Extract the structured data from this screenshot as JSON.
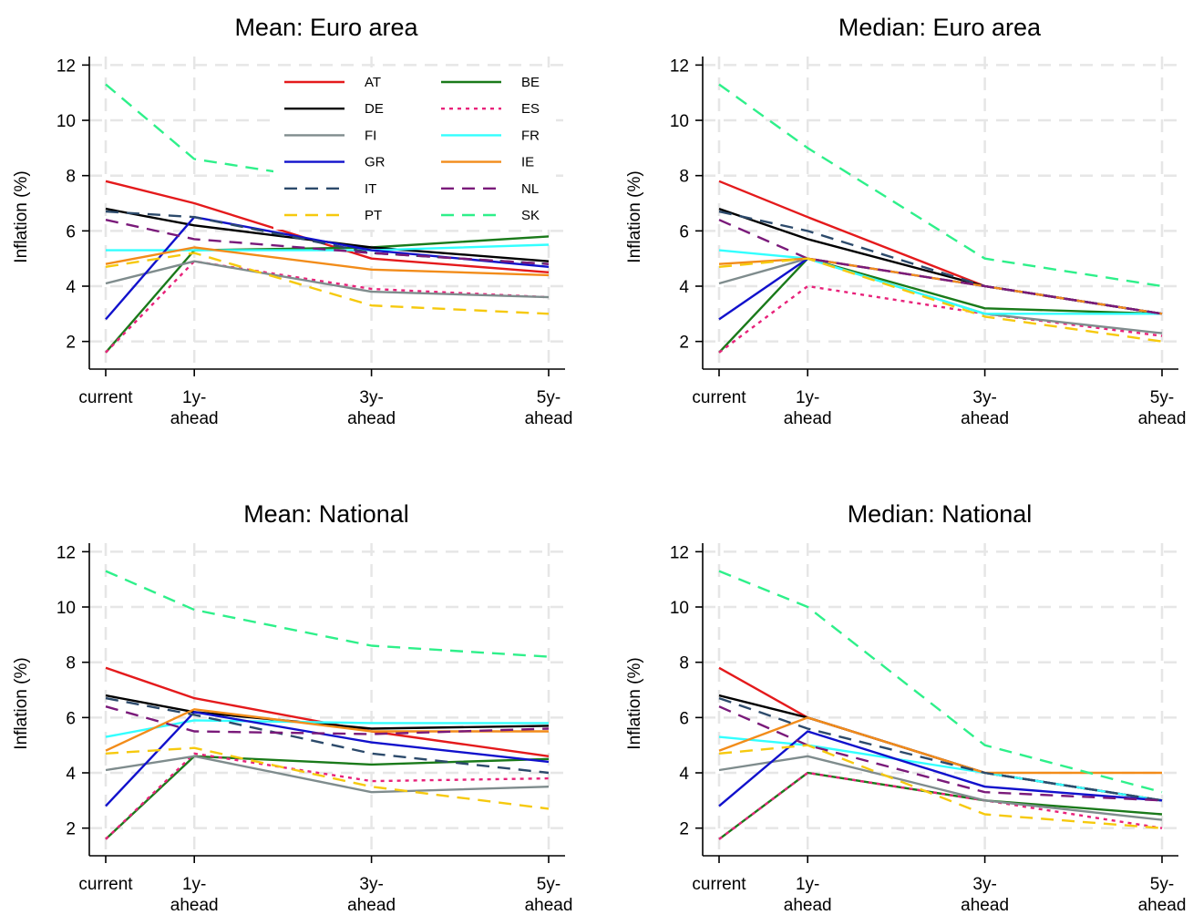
{
  "chart_data": [
    {
      "type": "line",
      "title": "Mean: Euro area",
      "ylabel": "Inflation (%)",
      "categories": [
        "current",
        "1y-ahead",
        "3y-ahead",
        "5y-ahead"
      ],
      "xtick_labels": [
        [
          "current"
        ],
        [
          "1y-",
          "ahead"
        ],
        [
          "3y-",
          "ahead"
        ],
        [
          "5y-",
          "ahead"
        ]
      ],
      "x": [
        0,
        1,
        3,
        5
      ],
      "ylim": [
        1,
        12.5
      ],
      "yticks": [
        2,
        4,
        6,
        8,
        10,
        12
      ],
      "grid": true,
      "legend": {
        "show": true,
        "placement": "top-inside",
        "columns": 2
      },
      "series": [
        {
          "name": "AT",
          "values": [
            7.8,
            7.0,
            5.0,
            4.5
          ]
        },
        {
          "name": "BE",
          "values": [
            1.6,
            5.3,
            5.4,
            5.8
          ]
        },
        {
          "name": "DE",
          "values": [
            6.8,
            6.2,
            5.4,
            4.9
          ]
        },
        {
          "name": "ES",
          "values": [
            1.6,
            4.9,
            3.9,
            3.6
          ]
        },
        {
          "name": "FI",
          "values": [
            4.1,
            4.9,
            3.8,
            3.6
          ]
        },
        {
          "name": "FR",
          "values": [
            5.3,
            5.3,
            5.3,
            5.5
          ]
        },
        {
          "name": "GR",
          "values": [
            2.8,
            6.5,
            5.3,
            4.7
          ]
        },
        {
          "name": "IE",
          "values": [
            4.8,
            5.4,
            4.6,
            4.4
          ]
        },
        {
          "name": "IT",
          "values": [
            6.7,
            6.5,
            5.2,
            4.8
          ]
        },
        {
          "name": "NL",
          "values": [
            6.4,
            5.7,
            5.2,
            4.8
          ]
        },
        {
          "name": "PT",
          "values": [
            4.7,
            5.2,
            3.3,
            3.0
          ]
        },
        {
          "name": "SK",
          "values": [
            11.3,
            8.6,
            7.6,
            7.2
          ]
        }
      ]
    },
    {
      "type": "line",
      "title": "Median: Euro area",
      "ylabel": "Inflation (%)",
      "categories": [
        "current",
        "1y-ahead",
        "3y-ahead",
        "5y-ahead"
      ],
      "xtick_labels": [
        [
          "current"
        ],
        [
          "1y-",
          "ahead"
        ],
        [
          "3y-",
          "ahead"
        ],
        [
          "5y-",
          "ahead"
        ]
      ],
      "x": [
        0,
        1,
        3,
        5
      ],
      "ylim": [
        1,
        12.5
      ],
      "yticks": [
        2,
        4,
        6,
        8,
        10,
        12
      ],
      "grid": true,
      "legend": {
        "show": false
      },
      "series": [
        {
          "name": "AT",
          "values": [
            7.8,
            6.5,
            4.0,
            3.0
          ]
        },
        {
          "name": "BE",
          "values": [
            1.6,
            5.0,
            3.2,
            3.0
          ]
        },
        {
          "name": "DE",
          "values": [
            6.8,
            5.7,
            4.0,
            3.0
          ]
        },
        {
          "name": "ES",
          "values": [
            1.6,
            4.0,
            3.0,
            2.2
          ]
        },
        {
          "name": "FI",
          "values": [
            4.1,
            5.0,
            3.0,
            2.3
          ]
        },
        {
          "name": "FR",
          "values": [
            5.3,
            5.0,
            3.0,
            3.0
          ]
        },
        {
          "name": "GR",
          "values": [
            2.8,
            5.0,
            4.0,
            3.0
          ]
        },
        {
          "name": "IE",
          "values": [
            4.8,
            5.0,
            4.0,
            3.0
          ]
        },
        {
          "name": "IT",
          "values": [
            6.7,
            6.0,
            4.0,
            3.0
          ]
        },
        {
          "name": "NL",
          "values": [
            6.4,
            5.0,
            4.0,
            3.0
          ]
        },
        {
          "name": "PT",
          "values": [
            4.7,
            5.0,
            2.9,
            2.0
          ]
        },
        {
          "name": "SK",
          "values": [
            11.3,
            9.0,
            5.0,
            4.0
          ]
        }
      ]
    },
    {
      "type": "line",
      "title": "Mean: National",
      "ylabel": "Inflation (%)",
      "categories": [
        "current",
        "1y-ahead",
        "3y-ahead",
        "5y-ahead"
      ],
      "xtick_labels": [
        [
          "current"
        ],
        [
          "1y-",
          "ahead"
        ],
        [
          "3y-",
          "ahead"
        ],
        [
          "5y-",
          "ahead"
        ]
      ],
      "x": [
        0,
        1,
        3,
        5
      ],
      "ylim": [
        1,
        12.5
      ],
      "yticks": [
        2,
        4,
        6,
        8,
        10,
        12
      ],
      "grid": true,
      "legend": {
        "show": false
      },
      "series": [
        {
          "name": "AT",
          "values": [
            7.8,
            6.7,
            5.5,
            4.6
          ]
        },
        {
          "name": "BE",
          "values": [
            1.6,
            4.6,
            4.3,
            4.5
          ]
        },
        {
          "name": "DE",
          "values": [
            6.8,
            6.2,
            5.6,
            5.7
          ]
        },
        {
          "name": "ES",
          "values": [
            1.6,
            4.7,
            3.7,
            3.8
          ]
        },
        {
          "name": "FI",
          "values": [
            4.1,
            4.6,
            3.3,
            3.5
          ]
        },
        {
          "name": "FR",
          "values": [
            5.3,
            5.9,
            5.8,
            5.8
          ]
        },
        {
          "name": "GR",
          "values": [
            2.8,
            6.2,
            5.1,
            4.4
          ]
        },
        {
          "name": "IE",
          "values": [
            4.8,
            6.3,
            5.5,
            5.5
          ]
        },
        {
          "name": "IT",
          "values": [
            6.7,
            6.1,
            4.7,
            4.0
          ]
        },
        {
          "name": "NL",
          "values": [
            6.4,
            5.5,
            5.4,
            5.6
          ]
        },
        {
          "name": "PT",
          "values": [
            4.7,
            4.9,
            3.5,
            2.7
          ]
        },
        {
          "name": "SK",
          "values": [
            11.3,
            9.9,
            8.6,
            8.2
          ]
        }
      ]
    },
    {
      "type": "line",
      "title": "Median: National",
      "ylabel": "Inflation (%)",
      "categories": [
        "current",
        "1y-ahead",
        "3y-ahead",
        "5y-ahead"
      ],
      "xtick_labels": [
        [
          "current"
        ],
        [
          "1y-",
          "ahead"
        ],
        [
          "3y-",
          "ahead"
        ],
        [
          "5y-",
          "ahead"
        ]
      ],
      "x": [
        0,
        1,
        3,
        5
      ],
      "ylim": [
        1,
        12.5
      ],
      "yticks": [
        2,
        4,
        6,
        8,
        10,
        12
      ],
      "grid": true,
      "legend": {
        "show": false
      },
      "series": [
        {
          "name": "AT",
          "values": [
            7.8,
            6.0,
            4.0,
            3.0
          ]
        },
        {
          "name": "BE",
          "values": [
            1.6,
            4.0,
            3.0,
            2.5
          ]
        },
        {
          "name": "DE",
          "values": [
            6.8,
            6.0,
            4.0,
            3.0
          ]
        },
        {
          "name": "ES",
          "values": [
            1.6,
            4.0,
            3.0,
            2.0
          ]
        },
        {
          "name": "FI",
          "values": [
            4.1,
            4.6,
            3.0,
            2.3
          ]
        },
        {
          "name": "FR",
          "values": [
            5.3,
            5.0,
            4.0,
            3.0
          ]
        },
        {
          "name": "GR",
          "values": [
            2.8,
            5.5,
            3.5,
            3.0
          ]
        },
        {
          "name": "IE",
          "values": [
            4.8,
            6.0,
            4.0,
            4.0
          ]
        },
        {
          "name": "IT",
          "values": [
            6.7,
            5.6,
            4.0,
            3.0
          ]
        },
        {
          "name": "NL",
          "values": [
            6.4,
            5.0,
            3.3,
            3.0
          ]
        },
        {
          "name": "PT",
          "values": [
            4.7,
            5.0,
            2.5,
            2.0
          ]
        },
        {
          "name": "SK",
          "values": [
            11.3,
            10.0,
            5.0,
            3.3
          ]
        }
      ]
    }
  ],
  "series_styles": {
    "AT": {
      "color": "#e41a1c",
      "dash": "solid"
    },
    "BE": {
      "color": "#1a7a1a",
      "dash": "solid"
    },
    "DE": {
      "color": "#000000",
      "dash": "solid"
    },
    "ES": {
      "color": "#e8227a",
      "dash": "dot"
    },
    "FI": {
      "color": "#7f8c8d",
      "dash": "solid"
    },
    "FR": {
      "color": "#33ffff",
      "dash": "solid"
    },
    "GR": {
      "color": "#1111cc",
      "dash": "solid"
    },
    "IE": {
      "color": "#f28c1a",
      "dash": "solid"
    },
    "IT": {
      "color": "#2c4a6b",
      "dash": "dash"
    },
    "NL": {
      "color": "#7a1a7a",
      "dash": "dash"
    },
    "PT": {
      "color": "#f6c90e",
      "dash": "dash"
    },
    "SK": {
      "color": "#2ef08a",
      "dash": "dash"
    }
  },
  "legend_order": [
    "AT",
    "BE",
    "DE",
    "ES",
    "FI",
    "FR",
    "GR",
    "IE",
    "IT",
    "NL",
    "PT",
    "SK"
  ]
}
